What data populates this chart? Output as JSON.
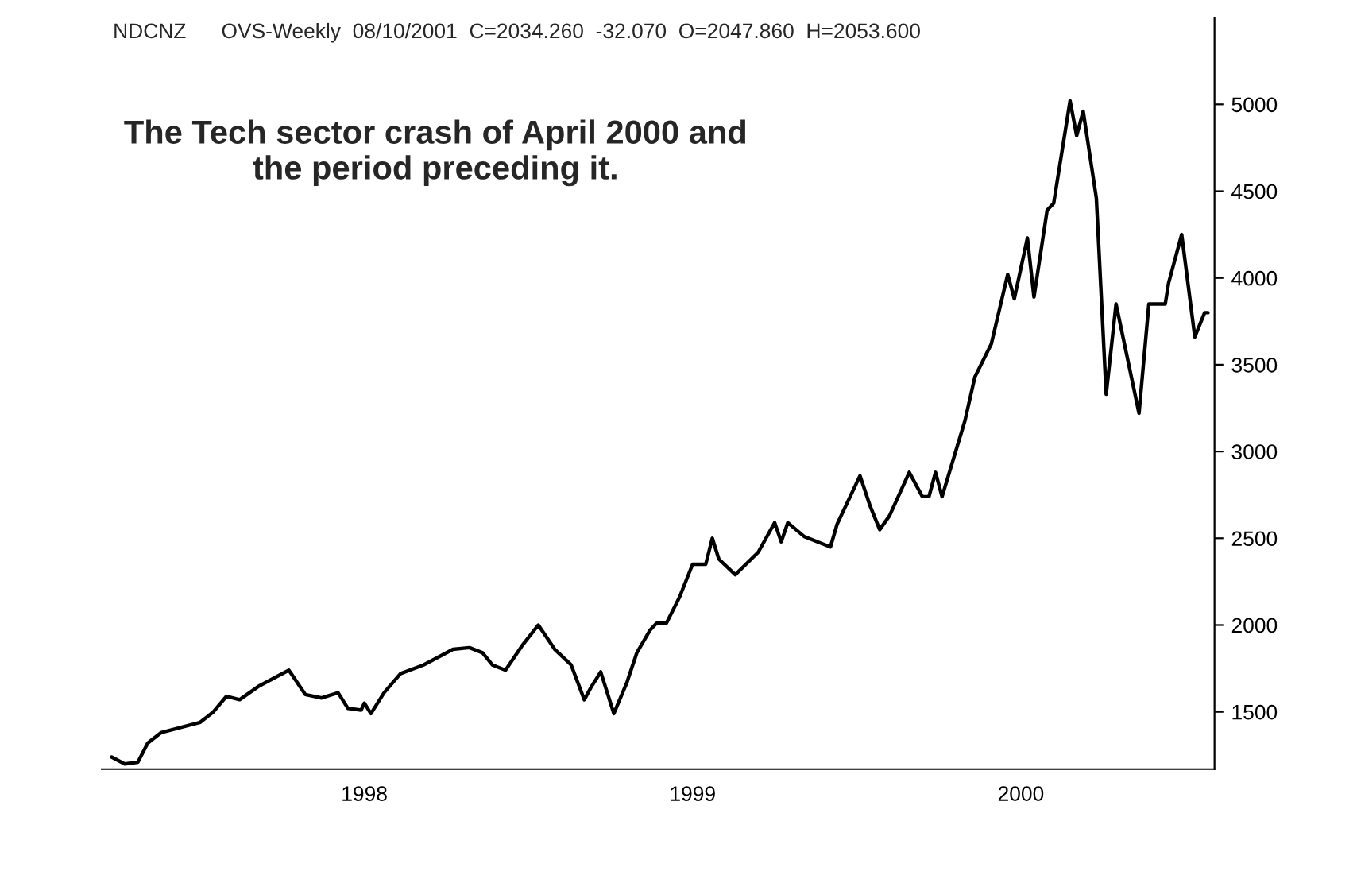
{
  "chart_data": {
    "type": "line",
    "title": "NDCNZ      OVS-Weekly  08/10/2001  C=2034.260  -32.070  O=2047.860  H=2053.600",
    "annotations": [
      "The Tech sector crash of April 2000 and\nthe period preceding it."
    ],
    "x": [
      1997.23,
      1997.27,
      1997.31,
      1997.34,
      1997.38,
      1997.44,
      1997.5,
      1997.54,
      1997.58,
      1997.62,
      1997.68,
      1997.73,
      1997.77,
      1997.82,
      1997.87,
      1997.92,
      1997.95,
      1997.99,
      1998.0,
      1998.02,
      1998.06,
      1998.11,
      1998.18,
      1998.22,
      1998.27,
      1998.32,
      1998.36,
      1998.39,
      1998.43,
      1998.48,
      1998.53,
      1998.58,
      1998.63,
      1998.67,
      1998.69,
      1998.72,
      1998.76,
      1998.8,
      1998.83,
      1998.87,
      1998.89,
      1998.92,
      1998.96,
      1999.0,
      1999.04,
      1999.06,
      1999.08,
      1999.13,
      1999.2,
      1999.25,
      1999.27,
      1999.29,
      1999.34,
      1999.42,
      1999.44,
      1999.51,
      1999.54,
      1999.57,
      1999.6,
      1999.66,
      1999.7,
      1999.72,
      1999.74,
      1999.76,
      1999.83,
      1999.86,
      1999.91,
      1999.96,
      1999.98,
      2000.02,
      2000.04,
      2000.08,
      2000.1,
      2000.15,
      2000.17,
      2000.19,
      2000.23,
      2000.26,
      2000.29,
      2000.36,
      2000.39,
      2000.44,
      2000.45,
      2000.49,
      2000.53,
      2000.56,
      2000.57
    ],
    "values": [
      1240,
      1200,
      1210,
      1320,
      1380,
      1410,
      1440,
      1500,
      1590,
      1570,
      1650,
      1700,
      1740,
      1600,
      1580,
      1610,
      1520,
      1510,
      1550,
      1490,
      1610,
      1720,
      1770,
      1810,
      1860,
      1870,
      1840,
      1770,
      1740,
      1880,
      2000,
      1860,
      1770,
      1570,
      1640,
      1730,
      1490,
      1670,
      1840,
      1970,
      2010,
      2010,
      2160,
      2350,
      2350,
      2500,
      2380,
      2290,
      2420,
      2590,
      2480,
      2590,
      2510,
      2450,
      2580,
      2860,
      2690,
      2550,
      2630,
      2880,
      2740,
      2740,
      2880,
      2740,
      3180,
      3430,
      3620,
      4020,
      3880,
      4230,
      3890,
      4390,
      4430,
      5020,
      4820,
      4960,
      4460,
      3330,
      3850,
      3220,
      3850,
      3850,
      3970,
      4250,
      3660,
      3800,
      3800
    ],
    "color": "#000000",
    "xlim": [
      1997.2,
      2000.59
    ],
    "xticks": [
      1998,
      1999,
      2000
    ],
    "ylim": [
      1170,
      5500
    ],
    "yticks": [
      1500,
      2000,
      2500,
      3000,
      3500,
      4000,
      4500,
      5000
    ],
    "grid": false,
    "marker": "none",
    "line_style": "solid"
  }
}
